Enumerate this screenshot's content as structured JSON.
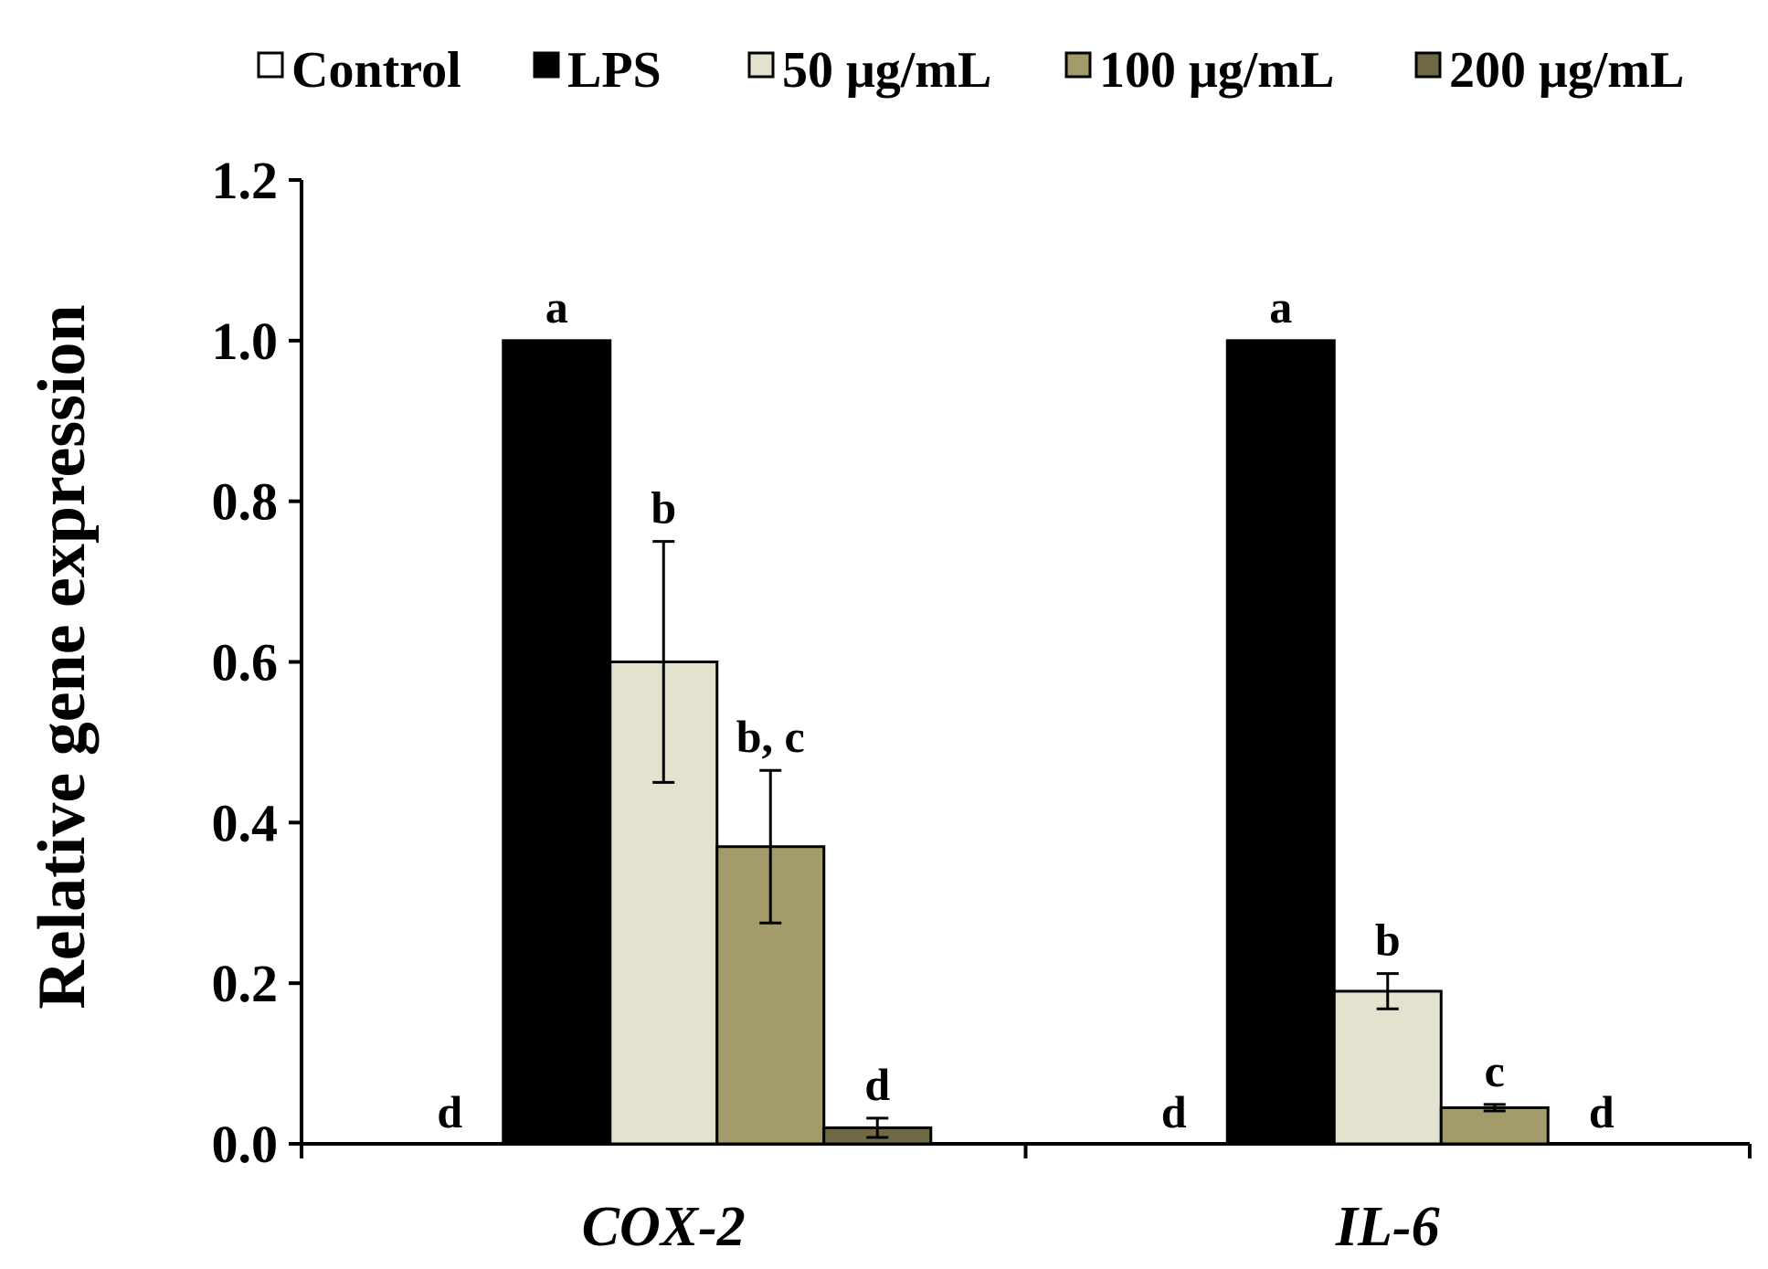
{
  "chart_data": {
    "type": "bar",
    "title": "",
    "xlabel": "",
    "ylabel": "Relative gene expression",
    "ylim": [
      0,
      1.2
    ],
    "yticks": [
      0.0,
      0.2,
      0.4,
      0.6,
      0.8,
      1.0,
      1.2
    ],
    "ytick_labels": [
      "0.0",
      "0.2",
      "0.4",
      "0.6",
      "0.8",
      "1.0",
      "1.2"
    ],
    "categories": [
      "COX-2",
      "IL-6"
    ],
    "grid": false,
    "legend_position": "top",
    "series": [
      {
        "name": "Control",
        "color": "#ffffff",
        "values": [
          0.0,
          0.0
        ],
        "errors": [
          0.0,
          0.0
        ],
        "letters": [
          "d",
          "d"
        ]
      },
      {
        "name": "LPS",
        "color": "#000000",
        "values": [
          1.0,
          1.0
        ],
        "errors": [
          0.0,
          0.0
        ],
        "letters": [
          "a",
          "a"
        ]
      },
      {
        "name": "50 μg/mL",
        "color": "#e3e2cf",
        "values": [
          0.6,
          0.19
        ],
        "errors": [
          0.15,
          0.022
        ],
        "letters": [
          "b",
          "b"
        ]
      },
      {
        "name": "100 μg/mL",
        "color": "#a39c6a",
        "values": [
          0.37,
          0.045
        ],
        "errors": [
          0.095,
          0.004
        ],
        "letters": [
          "b, c",
          "c"
        ]
      },
      {
        "name": "200 μg/mL",
        "color": "#6f6a45",
        "values": [
          0.02,
          0.0
        ],
        "errors": [
          0.012,
          0.0
        ],
        "letters": [
          "d",
          "d"
        ]
      }
    ]
  }
}
